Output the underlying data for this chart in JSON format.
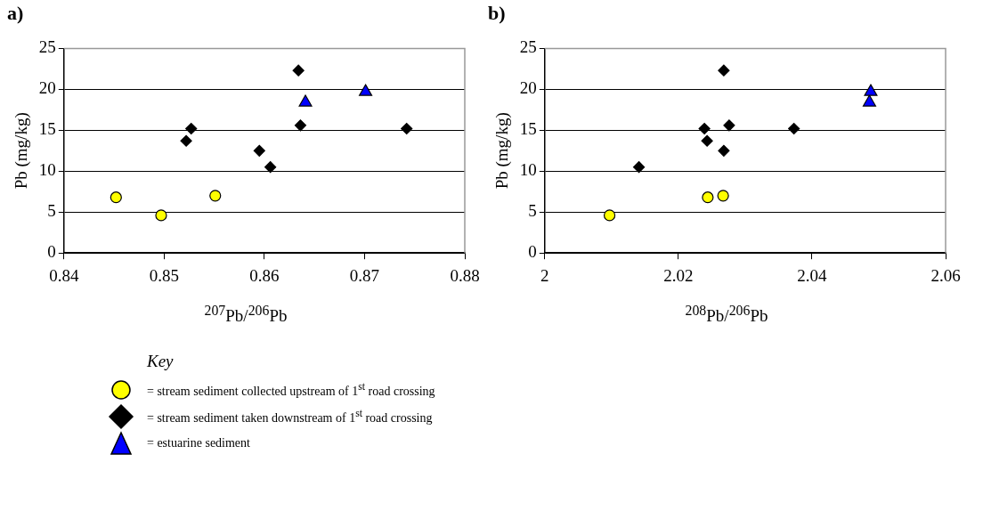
{
  "chart_data": [
    {
      "type": "scatter",
      "title": "a)",
      "xlabel": "$^{207}$Pb/$^{206}$Pb",
      "ylabel": "Pb (mg/kg)",
      "legend_title": "Key",
      "legend": "bottom",
      "grid": "y",
      "xlim": [
        0.84,
        0.88
      ],
      "xticks": [
        0.84,
        0.85,
        0.86,
        0.87,
        0.88
      ],
      "ylim": [
        0,
        25
      ],
      "yticks": [
        0,
        5,
        10,
        15,
        20,
        25
      ],
      "series": [
        {
          "name": "= stream sediment collected upstream of 1$^{st}$ road crossing",
          "color": "#ffff00",
          "marker": "circle",
          "x": [
            0.8452,
            0.8497,
            0.8551
          ],
          "values": [
            6.8,
            4.6,
            7.0
          ]
        },
        {
          "name": "= stream sediment taken downstream of 1$^{st}$ road crossing",
          "color": "#000000",
          "marker": "diamond",
          "x": [
            0.8522,
            0.8527,
            0.8595,
            0.8606,
            0.8634,
            0.8636,
            0.8742
          ],
          "values": [
            13.7,
            15.2,
            12.5,
            10.5,
            22.3,
            15.6,
            15.2
          ]
        },
        {
          "name": "= estuarine sediment",
          "color": "#0000ff",
          "marker": "triangle",
          "x": [
            0.8641,
            0.8701
          ],
          "values": [
            18.4,
            19.7
          ]
        }
      ]
    },
    {
      "type": "scatter",
      "title": "b)",
      "xlabel": "$^{208}$Pb/$^{206}$Pb",
      "ylabel": "Pb (mg/kg)",
      "grid": "y",
      "xlim": [
        2,
        2.06
      ],
      "xticks": [
        2,
        2.02,
        2.04,
        2.06
      ],
      "ylim": [
        0,
        25
      ],
      "yticks": [
        0,
        5,
        10,
        15,
        20,
        25
      ],
      "series": [
        {
          "color": "#ffff00",
          "marker": "circle",
          "x": [
            2.0097,
            2.0244,
            2.0267
          ],
          "values": [
            4.6,
            6.8,
            7.0
          ]
        },
        {
          "color": "#000000",
          "marker": "diamond",
          "x": [
            2.0141,
            2.0239,
            2.0243,
            2.0268,
            2.0268,
            2.0276,
            2.0373
          ],
          "values": [
            10.5,
            15.2,
            13.7,
            12.5,
            22.3,
            15.6,
            15.2
          ]
        },
        {
          "color": "#0000ff",
          "marker": "triangle",
          "x": [
            2.0486,
            2.0488
          ],
          "values": [
            18.4,
            19.7
          ]
        }
      ]
    }
  ]
}
